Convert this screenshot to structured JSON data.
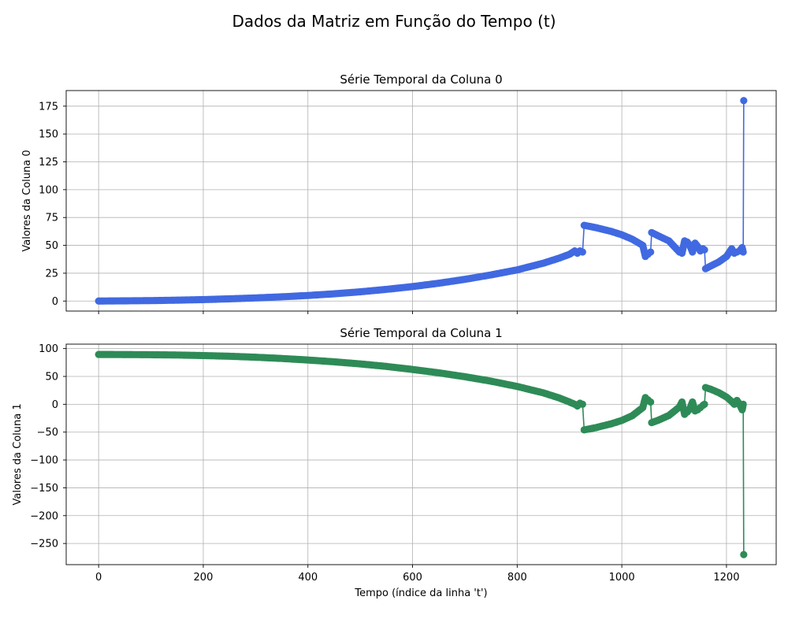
{
  "suptitle": "Dados da Matriz em Função do Tempo (t)",
  "chart_data": [
    {
      "type": "line",
      "title": "Série Temporal da Coluna 0",
      "xlabel": "",
      "ylabel": "Valores da Coluna 0",
      "xlim": [
        -62,
        1295
      ],
      "ylim": [
        -9,
        189
      ],
      "xticks": [
        0,
        200,
        400,
        600,
        800,
        1000,
        1200
      ],
      "yticks": [
        0,
        25,
        50,
        75,
        100,
        125,
        150,
        175
      ],
      "grid": true,
      "marker": "circle",
      "color": "#4169e1",
      "series": [
        {
          "x": [
            0,
            50,
            100,
            150,
            200,
            250,
            300,
            350,
            400,
            450,
            500,
            550,
            600,
            650,
            700,
            750,
            800,
            850,
            880,
            900,
            910,
            915,
            920,
            925,
            928,
            950,
            980,
            1000,
            1020,
            1040,
            1045,
            1050,
            1055,
            1057,
            1070,
            1090,
            1110,
            1115,
            1120,
            1125,
            1130,
            1135,
            1140,
            1145,
            1150,
            1155,
            1158,
            1160,
            1170,
            1185,
            1200,
            1210,
            1215,
            1220,
            1225,
            1230,
            1232,
            1233
          ],
          "values": [
            0,
            0.2,
            0.4,
            0.8,
            1.3,
            2,
            2.8,
            3.8,
            5,
            6.5,
            8.3,
            10.5,
            13,
            16,
            19.5,
            23.5,
            28,
            34,
            38.5,
            42,
            45,
            43,
            45,
            44,
            68,
            66,
            62.5,
            59.5,
            55.5,
            50,
            40,
            42,
            44,
            61.5,
            58.5,
            54,
            44,
            43,
            54,
            53,
            50,
            44,
            52,
            49,
            45,
            47,
            46,
            29,
            31.5,
            35,
            40,
            47,
            43,
            44,
            45,
            48,
            44,
            180
          ]
        }
      ]
    },
    {
      "type": "line",
      "title": "Série Temporal da Coluna 1",
      "xlabel": "Tempo (índice da linha 't')",
      "ylabel": "Valores da Coluna 1",
      "xlim": [
        -62,
        1295
      ],
      "ylim": [
        -288,
        108
      ],
      "xticks": [
        0,
        200,
        400,
        600,
        800,
        1000,
        1200
      ],
      "yticks": [
        100,
        50,
        0,
        -50,
        -100,
        -150,
        -200,
        -250
      ],
      "grid": true,
      "marker": "circle",
      "color": "#2e8b57",
      "series": [
        {
          "x": [
            0,
            50,
            100,
            150,
            200,
            250,
            300,
            350,
            400,
            450,
            500,
            550,
            600,
            650,
            700,
            750,
            800,
            850,
            880,
            900,
            910,
            915,
            920,
            925,
            928,
            950,
            980,
            1000,
            1020,
            1040,
            1045,
            1050,
            1055,
            1057,
            1070,
            1090,
            1110,
            1115,
            1120,
            1125,
            1130,
            1135,
            1140,
            1145,
            1150,
            1155,
            1158,
            1160,
            1170,
            1185,
            1200,
            1210,
            1215,
            1220,
            1225,
            1230,
            1232,
            1233
          ],
          "values": [
            89.5,
            89.3,
            89,
            88.5,
            87.5,
            86.3,
            84.5,
            82.3,
            79.5,
            76.3,
            72.5,
            68,
            62.5,
            56.5,
            49.5,
            41.5,
            32,
            20.5,
            11.5,
            4,
            0,
            -3,
            2,
            0,
            -46,
            -42,
            -35,
            -29,
            -20.5,
            -6,
            12,
            8,
            4,
            -33,
            -28.5,
            -20,
            -5,
            4,
            -18,
            -14,
            -8,
            4,
            -12,
            -10,
            -6,
            -2,
            0,
            30,
            27,
            21,
            13,
            5,
            0,
            7,
            0,
            -10,
            0,
            -270
          ]
        }
      ]
    }
  ]
}
